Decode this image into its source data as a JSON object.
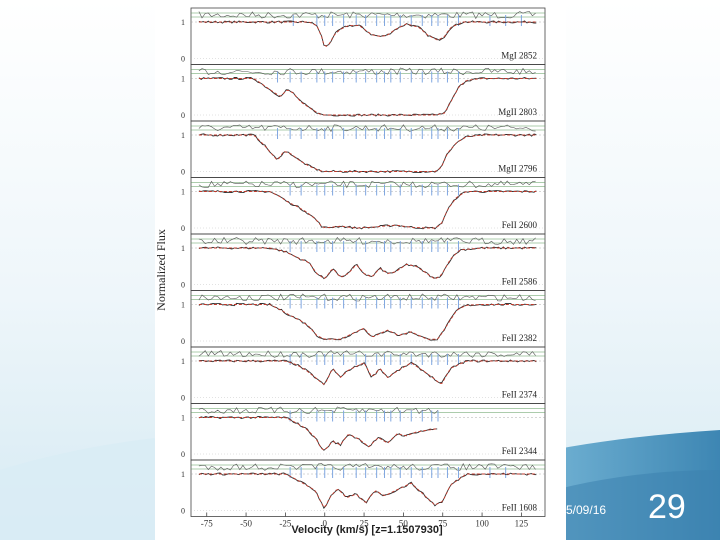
{
  "slide": {
    "date": "5/09/16",
    "number": "29",
    "colors": {
      "bg_light": "#eef6fa",
      "bg_mid": "#cfe6f0",
      "bg_dark": "#4f97c0"
    }
  },
  "chart_data": {
    "type": "line",
    "title": "",
    "xlabel": "Velocity (km/s) [z=1.1507930]",
    "ylabel": "Normalized Flux",
    "xlim": [
      -85,
      140
    ],
    "xticks": [
      -75,
      -50,
      -25,
      0,
      25,
      50,
      75,
      100,
      125
    ],
    "yticks": [
      0,
      1
    ],
    "colors": {
      "data": "#303030",
      "model": "#c0392b",
      "residual": "#5a9a5a",
      "components": "#7fa6e0"
    },
    "panels": [
      {
        "name": "MgI 2852",
        "x": [
          -60,
          -10,
          -5,
          -2,
          0,
          3,
          6,
          10,
          15,
          22,
          30,
          36,
          40,
          45,
          52,
          60,
          65,
          72,
          76,
          80,
          88,
          100,
          140
        ],
        "y": [
          1,
          1,
          0.9,
          0.6,
          0.3,
          0.4,
          0.65,
          0.8,
          0.9,
          0.9,
          0.65,
          0.6,
          0.65,
          0.8,
          0.95,
          0.85,
          0.65,
          0.5,
          0.6,
          0.85,
          1,
          1,
          1
        ],
        "components": [
          -20,
          -5,
          0,
          5,
          12,
          20,
          26,
          33,
          38,
          42,
          48,
          55,
          62,
          68,
          72,
          78,
          85,
          105,
          115,
          125
        ]
      },
      {
        "name": "MgII 2803",
        "x": [
          -80,
          -45,
          -35,
          -28,
          -24,
          -20,
          -15,
          -8,
          -3,
          0,
          10,
          30,
          50,
          60,
          70,
          76,
          80,
          85,
          90,
          100,
          140
        ],
        "y": [
          1,
          1,
          0.7,
          0.5,
          0.7,
          0.6,
          0.35,
          0.15,
          0.02,
          0,
          0,
          0,
          0,
          0,
          0,
          0.05,
          0.35,
          0.75,
          0.95,
          1,
          1
        ],
        "components": [
          -30,
          -22,
          -15,
          -5,
          0,
          5,
          12,
          20,
          26,
          33,
          38,
          42,
          48,
          55,
          62,
          68,
          72,
          78,
          85
        ]
      },
      {
        "name": "MgII 2796",
        "x": [
          -80,
          -45,
          -38,
          -30,
          -26,
          -22,
          -16,
          -10,
          -3,
          0,
          30,
          50,
          70,
          74,
          78,
          84,
          90,
          100,
          140
        ],
        "y": [
          1,
          1,
          0.7,
          0.3,
          0.55,
          0.5,
          0.3,
          0.15,
          0.02,
          0,
          0,
          0,
          0,
          0.1,
          0.5,
          0.8,
          0.95,
          1,
          1
        ],
        "components": [
          -30,
          -22,
          -15,
          -5,
          0,
          5,
          12,
          20,
          26,
          33,
          38,
          42,
          48,
          55,
          62,
          68,
          72,
          78,
          85
        ]
      },
      {
        "name": "FeII 2600",
        "x": [
          -80,
          -35,
          -28,
          -23,
          -18,
          -12,
          -6,
          -2,
          0,
          10,
          20,
          30,
          45,
          55,
          65,
          70,
          74,
          78,
          84,
          90,
          100,
          140
        ],
        "y": [
          1,
          1,
          0.85,
          0.7,
          0.6,
          0.45,
          0.25,
          0.05,
          0,
          0.05,
          0,
          0.02,
          0.08,
          0.02,
          0,
          0,
          0.1,
          0.5,
          0.85,
          1,
          1,
          1
        ],
        "components": [
          -22,
          -15,
          -5,
          0,
          5,
          12,
          20,
          26,
          33,
          38,
          42,
          48,
          55,
          62,
          68,
          72,
          78,
          85
        ]
      },
      {
        "name": "FeII 2586",
        "x": [
          -80,
          -35,
          -25,
          -18,
          -10,
          -5,
          0,
          5,
          10,
          15,
          20,
          25,
          30,
          35,
          40,
          45,
          52,
          58,
          65,
          70,
          74,
          80,
          86,
          100,
          140
        ],
        "y": [
          1,
          1,
          0.9,
          0.75,
          0.6,
          0.3,
          0.15,
          0.45,
          0.2,
          0.3,
          0.55,
          0.3,
          0.2,
          0.45,
          0.3,
          0.35,
          0.55,
          0.5,
          0.3,
          0.15,
          0.25,
          0.7,
          0.95,
          1,
          1
        ],
        "components": [
          -22,
          -15,
          -5,
          0,
          5,
          12,
          20,
          26,
          33,
          38,
          42,
          48,
          55,
          62,
          68,
          72,
          78,
          85
        ]
      },
      {
        "name": "FeII 2382",
        "x": [
          -80,
          -35,
          -28,
          -22,
          -15,
          -10,
          -5,
          0,
          10,
          20,
          25,
          30,
          35,
          40,
          47,
          55,
          65,
          72,
          78,
          84,
          90,
          100,
          140
        ],
        "y": [
          1,
          1,
          0.85,
          0.7,
          0.55,
          0.4,
          0.15,
          0.05,
          0.05,
          0.25,
          0.35,
          0.1,
          0.2,
          0.3,
          0.15,
          0.25,
          0.05,
          0.05,
          0.45,
          0.85,
          0.98,
          1,
          1
        ],
        "components": [
          -22,
          -15,
          -5,
          0,
          5,
          12,
          20,
          26,
          33,
          38,
          42,
          48,
          55,
          62,
          68,
          72,
          78,
          85
        ]
      },
      {
        "name": "FeII 2374",
        "x": [
          -80,
          -25,
          -18,
          -12,
          -6,
          -2,
          0,
          5,
          10,
          15,
          25,
          30,
          35,
          40,
          47,
          55,
          62,
          70,
          74,
          80,
          90,
          140
        ],
        "y": [
          1,
          1,
          0.9,
          0.75,
          0.55,
          0.4,
          0.35,
          0.8,
          0.55,
          0.75,
          0.95,
          0.55,
          0.8,
          0.55,
          0.75,
          0.95,
          0.75,
          0.5,
          0.35,
          0.8,
          1,
          1
        ],
        "components": [
          -22,
          -15,
          -5,
          0,
          5,
          12,
          20,
          26,
          33,
          38,
          42,
          48,
          55,
          62,
          68,
          72,
          78,
          85
        ]
      },
      {
        "name": "FeII 2344",
        "x": [
          -80,
          -25,
          -18,
          -12,
          -6,
          -2,
          0,
          5,
          10,
          15,
          22,
          28,
          34,
          40,
          46,
          52,
          58,
          65,
          72
        ],
        "y": [
          1,
          1,
          0.85,
          0.7,
          0.45,
          0.15,
          0.1,
          0.35,
          0.25,
          0.55,
          0.4,
          0.2,
          0.45,
          0.3,
          0.55,
          0.5,
          0.6,
          0.65,
          0.7
        ],
        "components": [
          -22,
          -15,
          -5,
          0,
          5,
          12,
          20,
          26,
          33,
          38,
          42,
          48,
          55,
          62,
          68,
          72
        ]
      },
      {
        "name": "FeII 1608",
        "x": [
          -80,
          -25,
          -18,
          -12,
          -6,
          -2,
          0,
          3,
          8,
          14,
          20,
          26,
          32,
          38,
          45,
          55,
          65,
          70,
          75,
          80,
          90,
          140
        ],
        "y": [
          1,
          1,
          0.85,
          0.7,
          0.55,
          0.2,
          0.05,
          0.35,
          0.6,
          0.35,
          0.45,
          0.2,
          0.55,
          0.4,
          0.55,
          0.75,
          0.35,
          0.15,
          0.25,
          0.7,
          1,
          1
        ],
        "components": [
          -22,
          -15,
          -5,
          0,
          5,
          12,
          20,
          26,
          33,
          38,
          42,
          48,
          55,
          62,
          68,
          72,
          78,
          85,
          105,
          115
        ]
      }
    ]
  }
}
